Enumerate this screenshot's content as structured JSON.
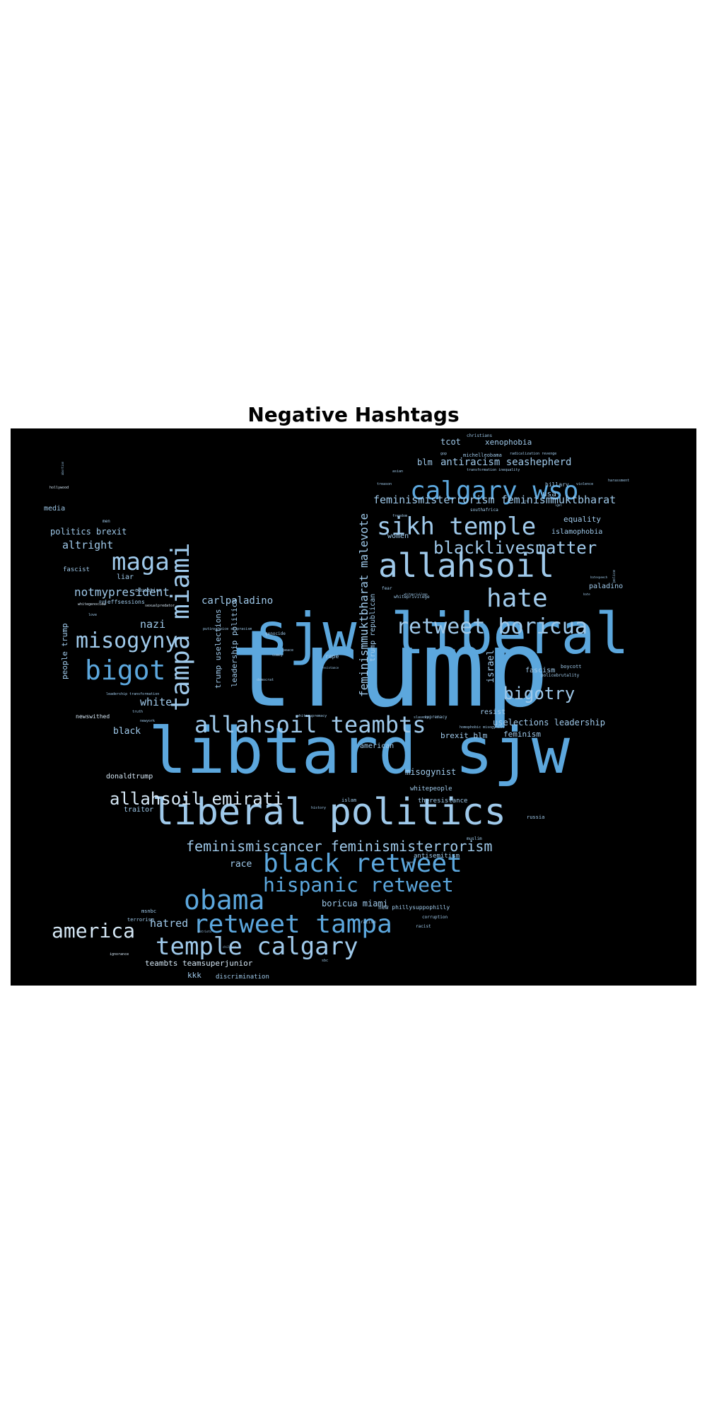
{
  "title": "Negative Hashtags",
  "colors": {
    "background": "#000000",
    "page": "#ffffff",
    "word_primary": "#5ca7dd",
    "word_secondary": "#9fc9ea",
    "word_light": "#d4e6f4"
  },
  "words": [
    "trump",
    "libtard sjw",
    "sjw liberal",
    "liberal politics",
    "allahsoil",
    "calgary wso",
    "sikh temple",
    "tampa miami",
    "maga",
    "bigot",
    "misogyny",
    "hate",
    "retweet boricua",
    "blacklivesmatter",
    "allahsoil teambts",
    "black retweet",
    "obama",
    "retweet tampa",
    "temple calgary",
    "hispanic retweet",
    "allahsoil emirati",
    "feminismiscancer feminismisterrorism",
    "america",
    "bigotry",
    "feminismmuktbharat malevote",
    "feminismisterrorism feminismmuktbharat",
    "antiracism seashepherd",
    "notmypresident",
    "altright",
    "nazi",
    "white",
    "hatred",
    "carlpaladino",
    "politics brexit",
    "tcot",
    "xenophobia",
    "blm",
    "uselections leadership",
    "brexit blm",
    "misogynist",
    "black",
    "israel",
    "feminism",
    "equality",
    "islamophobia",
    "paladino",
    "race",
    "boricua miami",
    "kkk",
    "people trump",
    "teambts teamsuperjunior",
    "discrimination",
    "traitor",
    "donaldtrump",
    "trump uselections",
    "leadership politics",
    "trump republican",
    "media",
    "fascist",
    "liar",
    "usa",
    "women",
    "resist",
    "fascism",
    "american",
    "antisemitism",
    "whitepeople",
    "theresistance",
    "new phillysuppophilly",
    "hillary",
    "jeffsessions",
    "newswithed",
    "terrorism",
    "msnbc",
    "education",
    "islam",
    "rape",
    "russia",
    "racism",
    "boycott",
    "corruption",
    "racist",
    "policebrutality",
    "michelleobama",
    "christians",
    "men",
    "nyc",
    "supremacy",
    "genocide",
    "whiteprivilege",
    "muslim",
    "fear",
    "southafrica",
    "harassment",
    "police",
    "peace",
    "love",
    "history",
    "comey",
    "democrat",
    "whitesupremacy",
    "violence",
    "freedom",
    "sexualpredator",
    "whitegenocide",
    "leadership transformation",
    "truth",
    "newyork",
    "hollywood",
    "ignorance",
    "asian",
    "treason",
    "slavery",
    "homophobic misogynist",
    "gop",
    "transformation inequality",
    "radicalization revenge",
    "hatespeech",
    "whiteprivilege",
    "sbc",
    "putinschoice stopracism",
    "abortion",
    "lgbt",
    "nra",
    "children",
    "patriots",
    "hate",
    "bias",
    "resistance"
  ],
  "icon": "twitter-bird-silhouette"
}
